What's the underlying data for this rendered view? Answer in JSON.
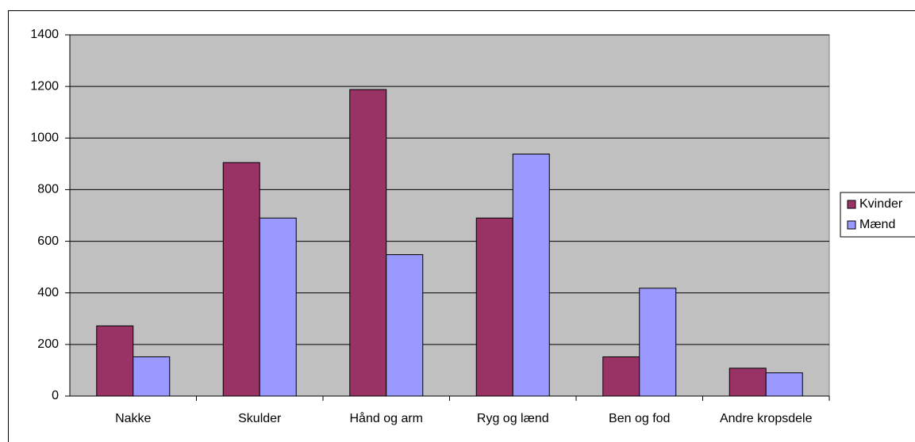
{
  "chart_data": {
    "type": "bar",
    "categories": [
      "Nakke",
      "Skulder",
      "Hånd og arm",
      "Ryg og lænd",
      "Ben og fod",
      "Andre kropsdele"
    ],
    "series": [
      {
        "name": "Kvinder",
        "color": "#993366",
        "values": [
          272,
          905,
          1188,
          690,
          152,
          108
        ]
      },
      {
        "name": "Mænd",
        "color": "#9999FF",
        "values": [
          152,
          690,
          548,
          938,
          418,
          90
        ]
      }
    ],
    "ylim": [
      0,
      1400
    ],
    "yticks": [
      0,
      200,
      400,
      600,
      800,
      1000,
      1200,
      1400
    ],
    "grid": true,
    "legend": "right",
    "plot_background": "#C0C0C0"
  }
}
